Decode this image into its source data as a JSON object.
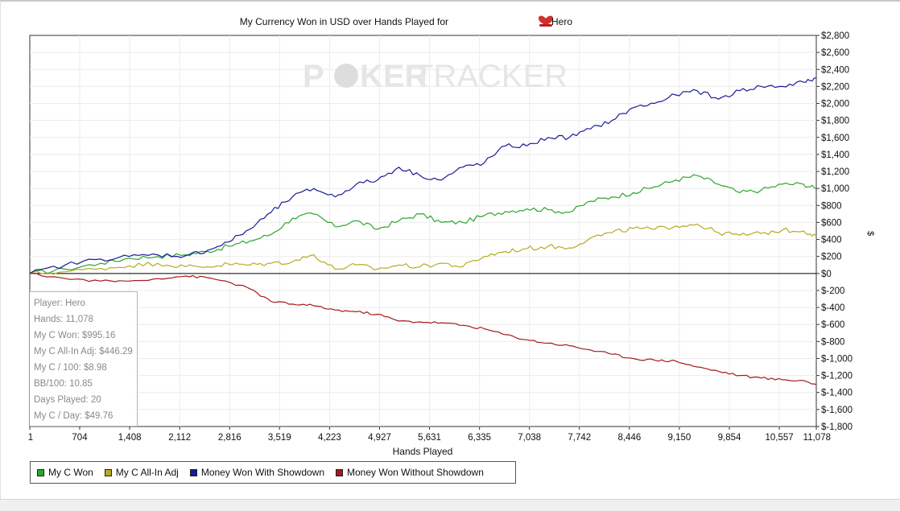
{
  "colors": {
    "series1": "#2aa62a",
    "series2": "#b5ab1f",
    "series3": "#1a1a99",
    "series4": "#a61a1a",
    "watermark": "#e6e6e6",
    "watermark_chip": "#dddddd"
  },
  "watermark": {
    "left": "P",
    "right": "KER",
    "tracker": "TRACKER"
  },
  "stats": [
    "Player: Hero",
    "Hands: 11,078",
    "My C Won: $995.16",
    "My C All-In Adj: $446.29",
    "My C / 100: $8.98",
    "BB/100: 10.85",
    "Days Played: 20",
    "My C / Day: $49.76"
  ],
  "chart_data": {
    "type": "line",
    "title": "My Currency Won in USD over Hands Played for",
    "title_suffix": "Hero",
    "title_icon": "poker-chip-icon",
    "xlabel": "Hands Played",
    "ylabel": "$",
    "xlim": [
      1,
      11078
    ],
    "ylim": [
      -1800,
      2800
    ],
    "x_ticks": [
      1,
      704,
      1408,
      2112,
      2816,
      3519,
      4223,
      4927,
      5631,
      6335,
      7038,
      7742,
      8446,
      9150,
      9854,
      10557,
      11078
    ],
    "x_tick_labels": [
      "1",
      "704",
      "1,408",
      "2,112",
      "2,816",
      "3,519",
      "4,223",
      "4,927",
      "5,631",
      "6,335",
      "7,038",
      "7,742",
      "8,446",
      "9,150",
      "9,854",
      "10,557",
      "11,078"
    ],
    "y_ticks": [
      2800,
      2600,
      2400,
      2200,
      2000,
      1800,
      1600,
      1400,
      1200,
      1000,
      800,
      600,
      400,
      200,
      0,
      -200,
      -400,
      -600,
      -800,
      -1000,
      -1200,
      -1400,
      -1600,
      -1800
    ],
    "y_tick_labels": [
      "$2,800",
      "$2,600",
      "$2,400",
      "$2,200",
      "$2,000",
      "$1,800",
      "$1,600",
      "$1,400",
      "$1,200",
      "$1,000",
      "$800",
      "$600",
      "$400",
      "$200",
      "$0",
      "$-200",
      "$-400",
      "$-600",
      "$-800",
      "$-1,000",
      "$-1,200",
      "$-1,400",
      "$-1,600",
      "$-1,800"
    ],
    "grid": true,
    "legend_position": "bottom-left",
    "x": [
      1,
      500,
      1000,
      1400,
      1800,
      2200,
      2500,
      2800,
      3100,
      3400,
      3700,
      4000,
      4300,
      4600,
      4900,
      5200,
      5500,
      5800,
      6100,
      6400,
      6700,
      7000,
      7300,
      7600,
      7900,
      8200,
      8500,
      8800,
      9100,
      9400,
      9700,
      10000,
      10300,
      10600,
      10900,
      11078
    ],
    "series": [
      {
        "name": "My C Won",
        "color_key": "series1",
        "values": [
          0,
          50,
          120,
          180,
          200,
          220,
          260,
          320,
          380,
          460,
          650,
          700,
          550,
          620,
          520,
          620,
          700,
          600,
          600,
          680,
          730,
          760,
          750,
          720,
          850,
          900,
          950,
          1020,
          1100,
          1150,
          1050,
          950,
          980,
          1050,
          1050,
          995
        ]
      },
      {
        "name": "My C All-In Adj",
        "color_key": "series2",
        "values": [
          0,
          20,
          60,
          90,
          120,
          80,
          80,
          110,
          100,
          120,
          140,
          220,
          50,
          100,
          50,
          100,
          80,
          120,
          80,
          200,
          260,
          290,
          320,
          300,
          420,
          480,
          530,
          520,
          560,
          580,
          480,
          450,
          470,
          510,
          500,
          446
        ]
      },
      {
        "name": "Money Won With Showdown",
        "color_key": "series3",
        "values": [
          0,
          100,
          170,
          200,
          220,
          210,
          270,
          370,
          520,
          720,
          900,
          1000,
          900,
          1050,
          1100,
          1250,
          1150,
          1100,
          1250,
          1300,
          1500,
          1500,
          1600,
          1600,
          1700,
          1800,
          1950,
          2000,
          2100,
          2150,
          2050,
          2150,
          2200,
          2200,
          2250,
          2300
        ]
      },
      {
        "name": "Money Won Without Showdown",
        "color_key": "series4",
        "values": [
          0,
          -60,
          -90,
          -90,
          -60,
          -30,
          -50,
          -100,
          -180,
          -330,
          -360,
          -380,
          -430,
          -450,
          -480,
          -560,
          -570,
          -580,
          -610,
          -650,
          -720,
          -780,
          -820,
          -850,
          -900,
          -950,
          -1000,
          -1020,
          -1030,
          -1100,
          -1150,
          -1200,
          -1230,
          -1250,
          -1260,
          -1310
        ]
      }
    ]
  }
}
